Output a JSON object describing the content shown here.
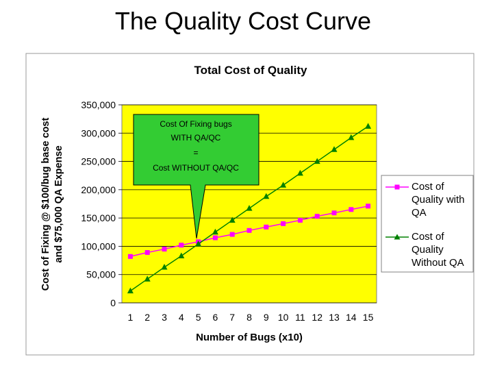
{
  "slide": {
    "title": "The Quality Cost Curve"
  },
  "callout": {
    "line1": "Cost  Of Fixing bugs",
    "line2": "WITH QA/QC",
    "line3": "=",
    "line4": "Cost WITHOUT QA/QC",
    "color": "#33cc33"
  },
  "chart_data": {
    "type": "line",
    "title": "Total Cost of Quality",
    "xlabel": "Number of Bugs (x10)",
    "ylabel_line1": "Cost of Fixing @ $100/bug base cost",
    "ylabel_line2": "and $75,000 QA Expense",
    "x": [
      1,
      2,
      3,
      4,
      5,
      6,
      7,
      8,
      9,
      10,
      11,
      12,
      13,
      14,
      15
    ],
    "x_tick_labels": [
      "1",
      "2",
      "3",
      "4",
      "5",
      "6",
      "7",
      "8",
      "9",
      "10",
      "11",
      "12",
      "13",
      "14",
      "15"
    ],
    "ylim": [
      0,
      350000
    ],
    "y_ticks": [
      0,
      50000,
      100000,
      150000,
      200000,
      250000,
      300000,
      350000
    ],
    "y_tick_labels": [
      "0",
      "50,000",
      "100,000",
      "150,000",
      "200,000",
      "250,000",
      "300,000",
      "350,000"
    ],
    "plot_background": "#ffff00",
    "grid": "horizontal",
    "legend_position": "right",
    "series": [
      {
        "name_line1": "Cost of",
        "name_line2": "Quality with",
        "name_line3": "QA",
        "marker": "square",
        "color": "#ff00ff",
        "values": [
          82000,
          89000,
          95000,
          102000,
          108000,
          115000,
          121000,
          128000,
          134000,
          140000,
          146000,
          153000,
          159000,
          165000,
          171000
        ]
      },
      {
        "name_line1": "Cost of",
        "name_line2": "Quality",
        "name_line3": "Without QA",
        "marker": "triangle",
        "color": "#008000",
        "values": [
          21000,
          42000,
          63000,
          83000,
          104000,
          125000,
          146000,
          167000,
          188000,
          208000,
          229000,
          250000,
          271000,
          292000,
          312000
        ]
      }
    ]
  }
}
